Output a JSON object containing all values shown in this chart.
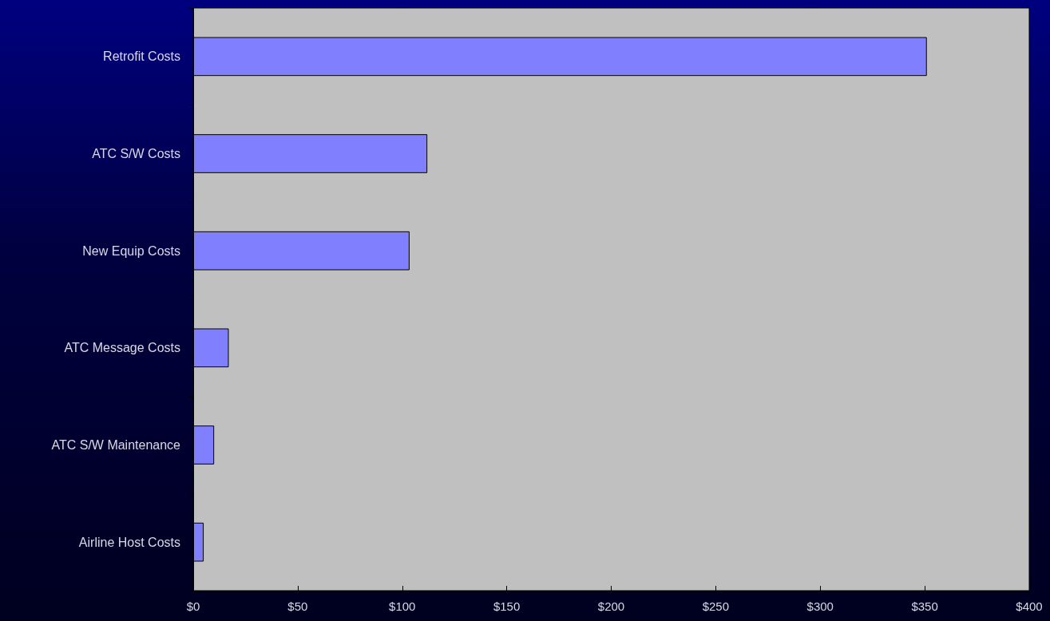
{
  "chart_data": {
    "type": "bar",
    "orientation": "horizontal",
    "categories": [
      "Retrofit Costs",
      "ATC S/W Costs",
      "New Equip Costs",
      "ATC Message Costs",
      "ATC S/W Maintenance",
      "Airline Host Costs"
    ],
    "values": [
      351,
      112,
      103.5,
      17,
      10,
      5
    ],
    "color": "#8080ff",
    "xlim": [
      0,
      400
    ],
    "xticks": [
      {
        "value": 0,
        "label": "$0"
      },
      {
        "value": 50,
        "label": "$50"
      },
      {
        "value": 100,
        "label": "$100"
      },
      {
        "value": 150,
        "label": "$150"
      },
      {
        "value": 200,
        "label": "$200"
      },
      {
        "value": 250,
        "label": "$250"
      },
      {
        "value": 300,
        "label": "$300"
      },
      {
        "value": 350,
        "label": "$350"
      },
      {
        "value": 400,
        "label": "$400"
      }
    ],
    "grid": false
  }
}
